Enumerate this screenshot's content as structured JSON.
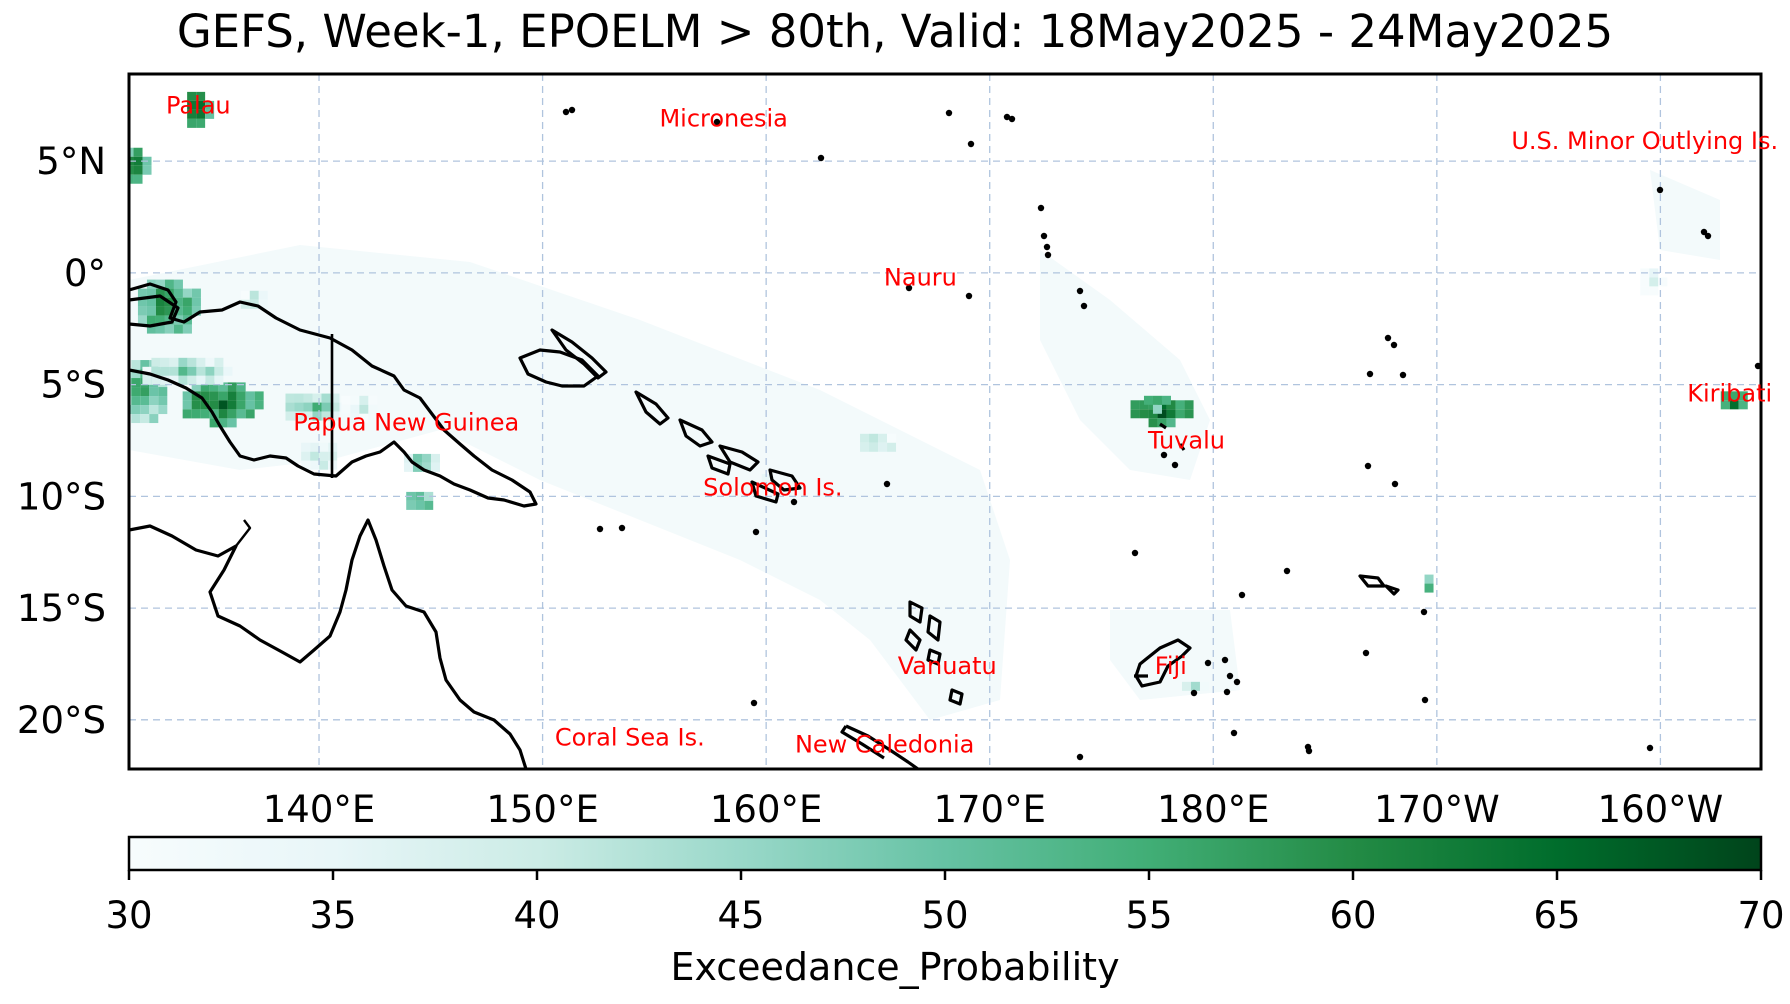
{
  "title": "GEFS, Week-1, EPOELM > 80th, Valid: 18May2025 - 24May2025",
  "map": {
    "extent": {
      "lon": [
        131.5,
        204.5
      ],
      "lat": [
        -22.2,
        8.9
      ]
    },
    "gridlines": true,
    "x_ticks": [
      {
        "lon": 140,
        "label": "140°E"
      },
      {
        "lon": 150,
        "label": "150°E"
      },
      {
        "lon": 160,
        "label": "160°E"
      },
      {
        "lon": 170,
        "label": "170°E"
      },
      {
        "lon": 180,
        "label": "180°E"
      },
      {
        "lon": 190,
        "label": "170°W"
      },
      {
        "lon": 200,
        "label": "160°W"
      }
    ],
    "y_ticks": [
      {
        "lat": 5,
        "label": "5°N"
      },
      {
        "lat": 0,
        "label": "0°"
      },
      {
        "lat": -5,
        "label": "5°S"
      },
      {
        "lat": -10,
        "label": "10°S"
      },
      {
        "lat": -15,
        "label": "15°S"
      },
      {
        "lat": -20,
        "label": "20°S"
      }
    ],
    "region_labels": [
      {
        "text": "Palau",
        "lon": 134.6,
        "lat": 7.5
      },
      {
        "text": "Micronesia",
        "lon": 158.1,
        "lat": 6.9
      },
      {
        "text": "U.S. Minor Outlying Is.",
        "lon": 199.3,
        "lat": 5.9
      },
      {
        "text": "Nauru",
        "lon": 166.9,
        "lat": -0.2
      },
      {
        "text": "Kiribati",
        "lon": 203.1,
        "lat": -5.4
      },
      {
        "text": "Papua New Guinea",
        "lon": 143.9,
        "lat": -6.7
      },
      {
        "text": "Tuvalu",
        "lon": 178.8,
        "lat": -7.5
      },
      {
        "text": "Solomon Is.",
        "lon": 160.3,
        "lat": -9.6
      },
      {
        "text": "Vanuatu",
        "lon": 168.1,
        "lat": -17.6
      },
      {
        "text": "Fiji",
        "lon": 178.1,
        "lat": -17.6
      },
      {
        "text": "Coral Sea Is.",
        "lon": 153.9,
        "lat": -20.8
      },
      {
        "text": "New Caledonia",
        "lon": 165.3,
        "lat": -21.1
      }
    ],
    "probability_patches": [
      {
        "lon": 131.8,
        "lat": 4.8,
        "w": 1.0,
        "h": 1.6,
        "p": 66
      },
      {
        "lon": 134.6,
        "lat": 7.3,
        "w": 1.0,
        "h": 1.6,
        "p": 70
      },
      {
        "lon": 133.2,
        "lat": -1.5,
        "w": 2.6,
        "h": 2.4,
        "p": 62
      },
      {
        "lon": 132.2,
        "lat": -5.2,
        "w": 2.0,
        "h": 2.6,
        "p": 58
      },
      {
        "lon": 135.6,
        "lat": -5.8,
        "w": 3.4,
        "h": 1.8,
        "p": 66
      },
      {
        "lon": 134.0,
        "lat": -4.4,
        "w": 3.8,
        "h": 1.2,
        "p": 50
      },
      {
        "lon": 139.8,
        "lat": -6.0,
        "w": 2.6,
        "h": 1.2,
        "p": 52
      },
      {
        "lon": 140.0,
        "lat": -8.2,
        "w": 1.6,
        "h": 1.2,
        "p": 46
      },
      {
        "lon": 144.5,
        "lat": -10.2,
        "w": 1.2,
        "h": 0.8,
        "p": 60
      },
      {
        "lon": 141.8,
        "lat": -6.0,
        "w": 1.6,
        "h": 1.0,
        "p": 44
      },
      {
        "lon": 144.6,
        "lat": -8.5,
        "w": 1.6,
        "h": 0.8,
        "p": 52
      },
      {
        "lon": 137.1,
        "lat": -1.2,
        "w": 1.2,
        "h": 0.8,
        "p": 46
      },
      {
        "lon": 165.0,
        "lat": -7.6,
        "w": 1.6,
        "h": 0.8,
        "p": 48
      },
      {
        "lon": 177.6,
        "lat": -6.2,
        "w": 2.6,
        "h": 1.0,
        "p": 70
      },
      {
        "lon": 177.4,
        "lat": -5.8,
        "w": 1.0,
        "h": 0.6,
        "p": 64
      },
      {
        "lon": 203.2,
        "lat": -5.7,
        "w": 1.0,
        "h": 0.8,
        "p": 68
      },
      {
        "lon": 199.6,
        "lat": -0.3,
        "w": 1.0,
        "h": 1.0,
        "p": 40
      },
      {
        "lon": 189.7,
        "lat": -13.9,
        "w": 0.5,
        "h": 0.8,
        "p": 58
      },
      {
        "lon": 179.2,
        "lat": -18.5,
        "w": 1.2,
        "h": 0.4,
        "p": 44
      },
      {
        "lon": 160.2,
        "lat": -9.2,
        "w": 0.8,
        "h": 0.4,
        "p": 40
      }
    ],
    "colormap": {
      "min": 30,
      "max": 70,
      "low_color": "#f7fcfd",
      "mid_color": "#66c2a4",
      "high_color": "#00441b"
    }
  },
  "colorbar": {
    "ticks": [
      "30",
      "35",
      "40",
      "45",
      "50",
      "55",
      "60",
      "65",
      "70"
    ],
    "label": "Exceedance_Probability"
  }
}
